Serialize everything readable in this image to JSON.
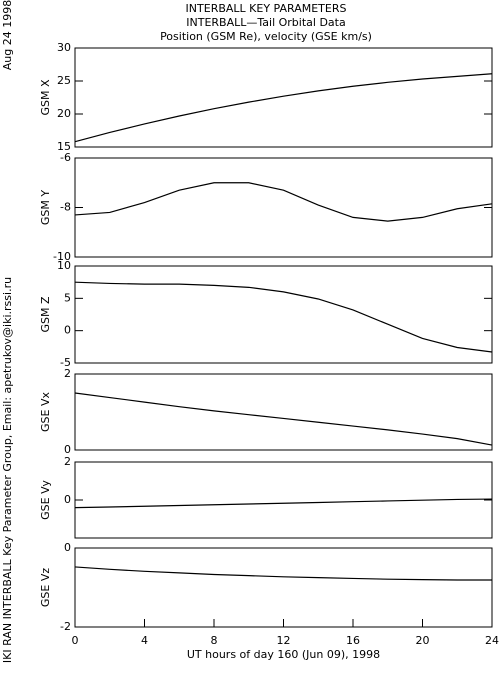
{
  "header": {
    "lines": [
      "INTERBALL KEY PARAMETERS",
      "INTERBALL—Tail Orbital Data",
      "Position (GSM Re), velocity (GSE km/s)"
    ]
  },
  "side": {
    "date": "Aug 24 1998",
    "credit": "IKI RAN INTERBALL Key Parameter Group, Email: apetrukov@iki.rssi.ru"
  },
  "chart_data": [
    {
      "type": "line",
      "ylabel": "GSM X",
      "x": [
        0,
        2,
        4,
        6,
        8,
        10,
        12,
        14,
        16,
        18,
        20,
        22,
        24
      ],
      "values": [
        15.8,
        17.2,
        18.5,
        19.7,
        20.8,
        21.8,
        22.7,
        23.5,
        24.2,
        24.8,
        25.3,
        25.7,
        26.1
      ],
      "xlim": [
        0,
        24
      ],
      "ylim": [
        15,
        30
      ],
      "yticks": [
        15,
        20,
        25,
        30
      ],
      "color": "#000000"
    },
    {
      "type": "line",
      "ylabel": "GSM Y",
      "x": [
        0,
        2,
        4,
        6,
        8,
        10,
        12,
        14,
        16,
        18,
        20,
        22,
        24
      ],
      "values": [
        -8.3,
        -8.2,
        -7.8,
        -7.3,
        -7.0,
        -7.0,
        -7.3,
        -7.9,
        -8.4,
        -8.55,
        -8.4,
        -8.05,
        -7.85
      ],
      "xlim": [
        0,
        24
      ],
      "ylim": [
        -10,
        -6
      ],
      "yticks": [
        -10,
        -8,
        -6
      ],
      "color": "#000000"
    },
    {
      "type": "line",
      "ylabel": "GSM Z",
      "x": [
        0,
        2,
        4,
        6,
        8,
        10,
        12,
        14,
        16,
        18,
        20,
        22,
        24
      ],
      "values": [
        7.5,
        7.3,
        7.2,
        7.2,
        7.0,
        6.7,
        6.0,
        4.9,
        3.2,
        1.0,
        -1.2,
        -2.6,
        -3.3
      ],
      "xlim": [
        0,
        24
      ],
      "ylim": [
        -5,
        10
      ],
      "yticks": [
        -5,
        0,
        5,
        10
      ],
      "color": "#000000"
    },
    {
      "type": "line",
      "ylabel": "GSE Vx",
      "x": [
        0,
        2,
        4,
        6,
        8,
        10,
        12,
        14,
        16,
        18,
        20,
        22,
        24
      ],
      "values": [
        1.5,
        1.38,
        1.26,
        1.14,
        1.03,
        0.93,
        0.83,
        0.73,
        0.63,
        0.53,
        0.42,
        0.3,
        0.13
      ],
      "xlim": [
        0,
        24
      ],
      "ylim": [
        0,
        2
      ],
      "yticks": [
        0,
        2
      ],
      "color": "#000000"
    },
    {
      "type": "line",
      "ylabel": "GSE Vy",
      "x": [
        0,
        2,
        4,
        6,
        8,
        10,
        12,
        14,
        16,
        18,
        20,
        22,
        24
      ],
      "values": [
        -0.4,
        -0.37,
        -0.33,
        -0.29,
        -0.25,
        -0.21,
        -0.17,
        -0.13,
        -0.09,
        -0.05,
        -0.01,
        0.03,
        0.05
      ],
      "xlim": [
        0,
        24
      ],
      "ylim": [
        -2,
        2
      ],
      "yticks": [
        0,
        2
      ],
      "color": "#000000"
    },
    {
      "type": "line",
      "ylabel": "GSE Vz",
      "x": [
        0,
        2,
        4,
        6,
        8,
        10,
        12,
        14,
        16,
        18,
        20,
        22,
        24
      ],
      "values": [
        -0.48,
        -0.54,
        -0.59,
        -0.63,
        -0.67,
        -0.7,
        -0.73,
        -0.75,
        -0.77,
        -0.79,
        -0.8,
        -0.81,
        -0.81
      ],
      "xlim": [
        0,
        24
      ],
      "ylim": [
        -2,
        0
      ],
      "yticks": [
        -2,
        0
      ],
      "xticks": [
        0,
        4,
        8,
        12,
        16,
        20,
        24
      ],
      "xlabel": "UT hours of day 160 (Jun 09), 1998",
      "color": "#000000"
    }
  ]
}
